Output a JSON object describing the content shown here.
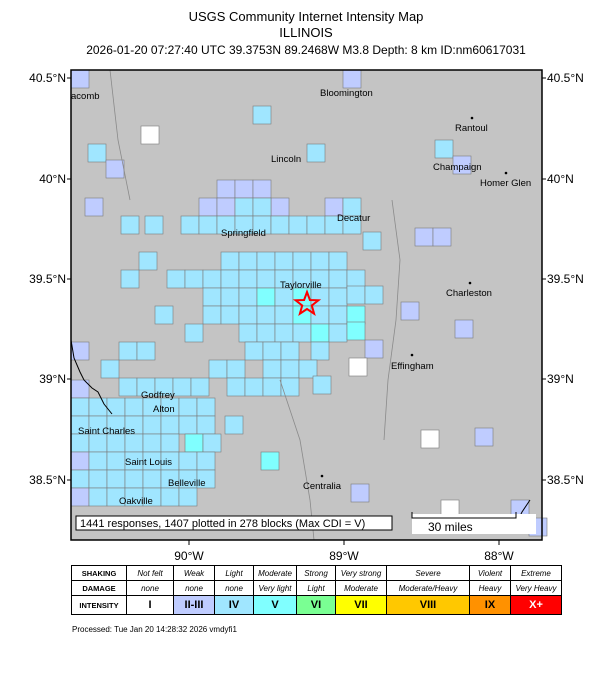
{
  "title": "USGS Community Internet Intensity Map",
  "region": "ILLINOIS",
  "event_line": "2026-01-20 07:27:40 UTC 39.3753N 89.2468W M3.8 Depth: 8 km ID:nm60617031",
  "map": {
    "lat_labels": [
      "40.5°N",
      "40°N",
      "39.5°N",
      "39°N",
      "38.5°N"
    ],
    "lon_labels": [
      "90°W",
      "89°W",
      "88°W"
    ],
    "cities": [
      {
        "name": "acomb"
      },
      {
        "name": "Bloomington"
      },
      {
        "name": "Rantoul"
      },
      {
        "name": "Lincoln"
      },
      {
        "name": "Champaign"
      },
      {
        "name": "Homer Glen"
      },
      {
        "name": "Decatur"
      },
      {
        "name": "Springfield"
      },
      {
        "name": "Taylorville"
      },
      {
        "name": "Charleston"
      },
      {
        "name": "Effingham"
      },
      {
        "name": "Godfrey"
      },
      {
        "name": "Alton"
      },
      {
        "name": "Saint Charles"
      },
      {
        "name": "Saint Louis"
      },
      {
        "name": "Belleville"
      },
      {
        "name": "Centralia"
      },
      {
        "name": "Oakville"
      }
    ],
    "responses_text": "1441 responses, 1407 plotted in 278 blocks (Max CDI = V)",
    "scale_text": "30 miles",
    "epicenter_icon": "star-icon",
    "colors": {
      "I": "#ffffff",
      "II-III": "#bfccff",
      "IV": "#a0e6ff",
      "V": "#80ffff",
      "VI": "#7aff93",
      "VII": "#ffff00",
      "VIII": "#ffc800",
      "IX": "#ff9100",
      "X+": "#ff0000"
    }
  },
  "legend": {
    "rows": [
      {
        "header": "SHAKING",
        "cells": [
          "Not felt",
          "Weak",
          "Light",
          "Moderate",
          "Strong",
          "Very strong",
          "Severe",
          "Violent",
          "Extreme"
        ]
      },
      {
        "header": "DAMAGE",
        "cells": [
          "none",
          "none",
          "none",
          "Very light",
          "Light",
          "Moderate",
          "Moderate/Heavy",
          "Heavy",
          "Very Heavy"
        ]
      },
      {
        "header": "INTENSITY",
        "cells": [
          "I",
          "II-III",
          "IV",
          "V",
          "VI",
          "VII",
          "VIII",
          "IX",
          "X+"
        ]
      }
    ],
    "colors": [
      "#ffffff",
      "#bfccff",
      "#a0e6ff",
      "#80ffff",
      "#7aff93",
      "#ffff00",
      "#ffc800",
      "#ff9100",
      "#ff0000"
    ]
  },
  "processed": "Processed: Tue Jan 20 14:28:32 2026 vmdyfi1"
}
